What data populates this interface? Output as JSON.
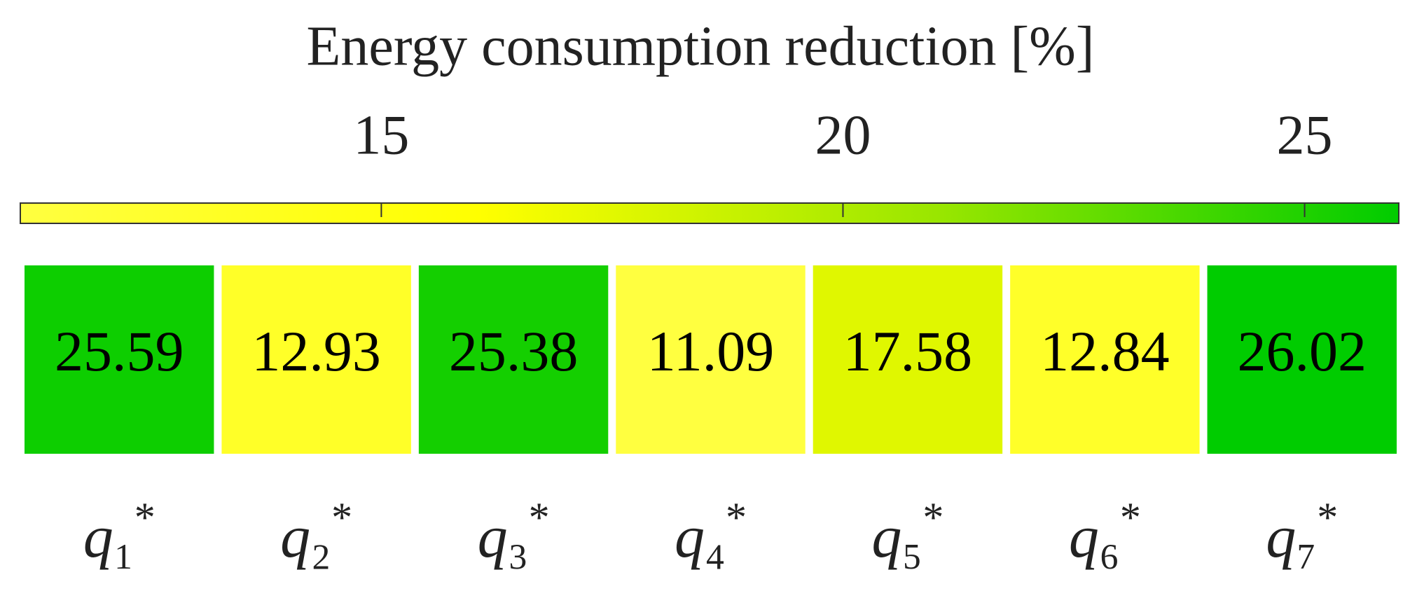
{
  "chart_data": {
    "type": "heatmap",
    "title": "Energy consumption reduction [%]",
    "categories": [
      "q₁*",
      "q₂*",
      "q₃*",
      "q₄*",
      "q₅*",
      "q₆*",
      "q₇*"
    ],
    "values": [
      25.59,
      12.93,
      25.38,
      11.09,
      17.58,
      12.84,
      26.02
    ],
    "colormap": [
      "#ffff40",
      "#ffff00",
      "#99e600",
      "#00cc00"
    ],
    "clim": [
      11.09,
      26.02
    ],
    "cticks": [
      15,
      20,
      25
    ]
  }
}
